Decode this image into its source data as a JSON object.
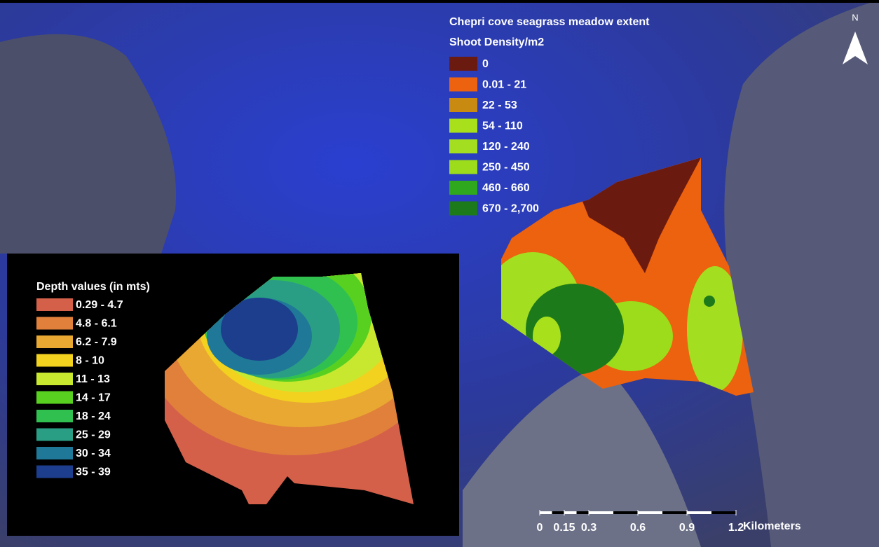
{
  "title": "Chepri cove seagrass meadow extent",
  "north": "N",
  "density_legend": {
    "title": "Shoot Density/m2",
    "items": [
      {
        "label": "0",
        "color": "#6b1a10"
      },
      {
        "label": "0.01 - 21",
        "color": "#ec620e"
      },
      {
        "label": "22 - 53",
        "color": "#c98a12"
      },
      {
        "label": "54 - 110",
        "color": "#a9e01c"
      },
      {
        "label": "120 - 240",
        "color": "#a4de20"
      },
      {
        "label": "250 - 450",
        "color": "#9cdc1a"
      },
      {
        "label": "460 - 660",
        "color": "#2fa81e"
      },
      {
        "label": "670 - 2,700",
        "color": "#1c7a1a"
      }
    ]
  },
  "depth_legend": {
    "title": "Depth values (in mts)",
    "items": [
      {
        "label": "0.29 - 4.7",
        "color": "#d4604a"
      },
      {
        "label": "4.8 - 6.1",
        "color": "#e0803a"
      },
      {
        "label": "6.2 - 7.9",
        "color": "#e9a832"
      },
      {
        "label": "8 - 10",
        "color": "#f2d21e"
      },
      {
        "label": "11 - 13",
        "color": "#c8e830"
      },
      {
        "label": "14 - 17",
        "color": "#58d020"
      },
      {
        "label": "18 - 24",
        "color": "#30c050"
      },
      {
        "label": "25 - 29",
        "color": "#2a9e84"
      },
      {
        "label": "30 - 34",
        "color": "#1f7898"
      },
      {
        "label": "35 - 39",
        "color": "#1c3e8c"
      }
    ]
  },
  "scale_bar": {
    "unit": "Kilometers",
    "ticks": [
      0,
      0.15,
      0.3,
      0.6,
      0.9,
      1.2
    ]
  }
}
